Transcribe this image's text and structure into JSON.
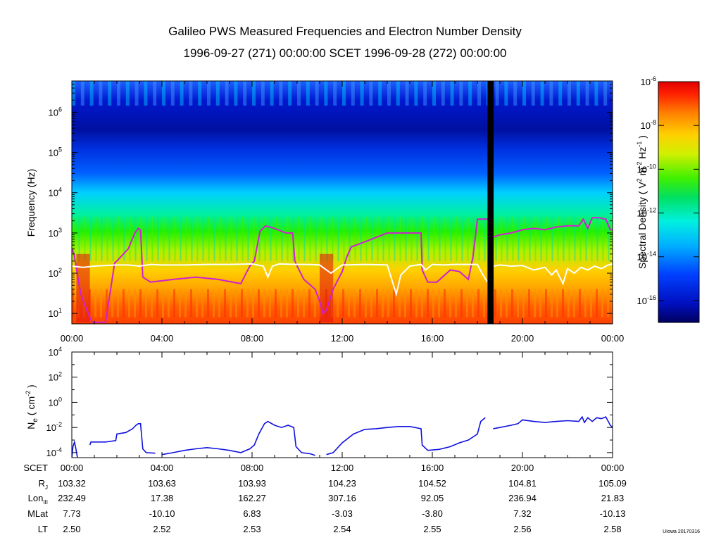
{
  "title_line1": "Galileo PWS Measured Frequencies and Electron Number Density",
  "title_line2": "1996-09-27 (271) 00:00:00 SCET 1996-09-28 (272) 00:00:00",
  "credit": "UIowa 20170316",
  "colors": {
    "density_line": "#1010e0",
    "trace_magenta": "#d020d0",
    "trace_white": "#ffffff",
    "data_gap": "#000000"
  },
  "chart_data": [
    {
      "type": "heatmap",
      "name": "spectrogram",
      "ylabel": "Frequency (Hz)",
      "yscale": "log",
      "ylim": [
        5.5,
        6000000
      ],
      "yticks": [
        {
          "value": 10,
          "base": "10",
          "exp": "1"
        },
        {
          "value": 100,
          "base": "10",
          "exp": "2"
        },
        {
          "value": 1000,
          "base": "10",
          "exp": "3"
        },
        {
          "value": 10000,
          "base": "10",
          "exp": "4"
        },
        {
          "value": 100000,
          "base": "10",
          "exp": "5"
        },
        {
          "value": 1000000,
          "base": "10",
          "exp": "6"
        }
      ],
      "xlim_hours": [
        0,
        24
      ],
      "xticks": [
        "00:00",
        "04:00",
        "08:00",
        "12:00",
        "16:00",
        "20:00",
        "00:00"
      ],
      "data_gap_hours": [
        18.45,
        18.72
      ],
      "colorbar": {
        "label": "Spectral Density ( V",
        "label_sup1": "2",
        "label_mid": " m",
        "label_sup2": "-2",
        "label_mid2": " Hz",
        "label_sup3": "-1",
        "label_end": " )",
        "log_range": [
          -17,
          -6
        ],
        "ticks": [
          {
            "value": -6,
            "base": "10",
            "exp": "-6"
          },
          {
            "value": -8,
            "base": "10",
            "exp": "-8"
          },
          {
            "value": -10,
            "base": "10",
            "exp": "-10"
          },
          {
            "value": -12,
            "base": "10",
            "exp": "-12"
          },
          {
            "value": -14,
            "base": "10",
            "exp": "-14"
          },
          {
            "value": -16,
            "base": "10",
            "exp": "-16"
          }
        ]
      },
      "series": [
        {
          "name": "magenta trace",
          "x": [
            0,
            0.1,
            0.25,
            0.4,
            0.6,
            0.8,
            0.9,
            1.5,
            1.9,
            2.0,
            2.5,
            2.8,
            2.95,
            3.05,
            3.15,
            3.5,
            4.5,
            5.5,
            6.5,
            7.5,
            7.9,
            8.1,
            8.35,
            8.6,
            9.0,
            9.5,
            9.8,
            9.9,
            10.0,
            10.3,
            10.6,
            10.8,
            11.0,
            11.15,
            11.3,
            11.6,
            12.0,
            12.2,
            12.4,
            13.0,
            14.0,
            15.0,
            15.5,
            15.55,
            15.8,
            16.2,
            16.8,
            17.2,
            17.6,
            17.8,
            17.9,
            18.0,
            18.45
          ],
          "y": [
            400,
            300,
            90,
            30,
            15,
            8,
            6,
            6,
            180,
            200,
            400,
            1000,
            1300,
            1200,
            80,
            60,
            70,
            80,
            70,
            55,
            150,
            200,
            1100,
            1500,
            1300,
            1000,
            1000,
            200,
            150,
            70,
            50,
            40,
            20,
            10,
            12,
            40,
            110,
            250,
            450,
            600,
            1000,
            1000,
            1000,
            120,
            60,
            60,
            120,
            110,
            70,
            250,
            700,
            2200,
            2200
          ]
        },
        {
          "name": "magenta trace (after gap)",
          "x": [
            18.72,
            19.0,
            19.5,
            20.0,
            20.5,
            21.0,
            21.5,
            22.0,
            22.5,
            22.7,
            22.9,
            23.1,
            23.4,
            23.7,
            23.9,
            24.0
          ],
          "y": [
            800,
            900,
            1000,
            1200,
            1300,
            1200,
            1400,
            1500,
            1500,
            2200,
            1300,
            2400,
            2400,
            2200,
            1200,
            1200
          ]
        },
        {
          "name": "white trace",
          "x": [
            0,
            0.5,
            1.0,
            1.5,
            2.0,
            2.5,
            3.0,
            3.5,
            4.0,
            5.0,
            6.0,
            7.0,
            8.0,
            8.5,
            8.7,
            8.9,
            9.2,
            10.0,
            10.5,
            11.0,
            11.3,
            11.5,
            12.0,
            13.0,
            14.0,
            14.2,
            14.4,
            14.6,
            15.0,
            15.5,
            15.7,
            16.0,
            16.5,
            17.0,
            17.5,
            18.0,
            18.2,
            18.45
          ],
          "y": [
            150,
            140,
            150,
            155,
            160,
            160,
            150,
            165,
            160,
            160,
            165,
            165,
            170,
            150,
            80,
            150,
            170,
            165,
            165,
            160,
            120,
            100,
            160,
            165,
            160,
            70,
            30,
            90,
            150,
            165,
            120,
            165,
            160,
            165,
            165,
            165,
            100,
            60
          ]
        },
        {
          "name": "white trace (after gap)",
          "x": [
            18.72,
            19.0,
            19.5,
            20.0,
            20.5,
            21.0,
            21.3,
            21.5,
            21.8,
            22.0,
            22.3,
            22.6,
            22.9,
            23.2,
            23.5,
            23.8,
            24.0
          ],
          "y": [
            150,
            160,
            150,
            155,
            120,
            140,
            90,
            120,
            55,
            130,
            100,
            140,
            120,
            150,
            130,
            160,
            170
          ]
        }
      ]
    },
    {
      "type": "line",
      "name": "electron density",
      "ylabel_main": "N",
      "ylabel_sub": "e",
      "ylabel_rest": " ( cm",
      "ylabel_sup": "-2",
      "ylabel_end": " )",
      "yscale": "log",
      "ylim": [
        4e-05,
        10000
      ],
      "yticks": [
        {
          "value": 0.0001,
          "base": "10",
          "exp": "-4"
        },
        {
          "value": 0.01,
          "base": "10",
          "exp": "-2"
        },
        {
          "value": 1,
          "base": "10",
          "exp": "0"
        },
        {
          "value": 100,
          "base": "10",
          "exp": "2"
        },
        {
          "value": 10000,
          "base": "10",
          "exp": "4"
        }
      ],
      "xlim_hours": [
        0,
        24
      ],
      "series": [
        {
          "name": "Ne a",
          "x": [
            0.0,
            0.05,
            0.12,
            0.18,
            0.25
          ],
          "y": [
            4e-05,
            0.0003,
            0.0007,
            0.0002,
            4e-05
          ]
        },
        {
          "name": "Ne b",
          "x": [
            0.8,
            0.85,
            1.5,
            1.95,
            2.0,
            2.4,
            2.7,
            2.85,
            2.95,
            3.05,
            3.15,
            3.3,
            3.7
          ],
          "y": [
            0.0004,
            0.0007,
            0.0007,
            0.0009,
            0.003,
            0.004,
            0.008,
            0.015,
            0.02,
            0.02,
            0.0002,
            0.0001,
            9e-05
          ]
        },
        {
          "name": "Ne c",
          "x": [
            4.0,
            4.5,
            5.0,
            5.5,
            6.0,
            6.5,
            7.0,
            7.5,
            7.9,
            8.1,
            8.3,
            8.55,
            8.7,
            9.0,
            9.3,
            9.6,
            9.85,
            9.95,
            10.2,
            10.6,
            10.8
          ],
          "y": [
            7e-05,
            0.0001,
            0.00015,
            0.0002,
            0.00025,
            0.0002,
            0.00015,
            0.0001,
            0.0002,
            0.0004,
            0.003,
            0.02,
            0.03,
            0.015,
            0.01,
            0.015,
            0.01,
            0.0003,
            0.0001,
            8e-05,
            6e-05
          ]
        },
        {
          "name": "Ne d",
          "x": [
            11.3,
            11.6,
            12.0,
            12.5,
            13.0,
            13.5,
            14.0,
            14.5,
            15.0,
            15.5,
            15.55,
            15.8,
            16.3,
            16.8,
            17.2,
            17.6,
            18.0,
            18.15,
            18.35
          ],
          "y": [
            7e-05,
            0.0001,
            0.0006,
            0.003,
            0.007,
            0.008,
            0.01,
            0.012,
            0.012,
            0.008,
            0.0004,
            0.00015,
            0.00018,
            0.0003,
            0.0006,
            0.001,
            0.003,
            0.03,
            0.06
          ]
        },
        {
          "name": "Ne e",
          "x": [
            18.7,
            19.0,
            19.5,
            19.8,
            20.0,
            20.5,
            21.0,
            21.5,
            22.0,
            22.5,
            22.65,
            22.75,
            22.9,
            23.1,
            23.3,
            23.5,
            23.7,
            23.9,
            24.0
          ],
          "y": [
            0.008,
            0.01,
            0.015,
            0.02,
            0.04,
            0.03,
            0.025,
            0.03,
            0.035,
            0.03,
            0.07,
            0.025,
            0.06,
            0.03,
            0.06,
            0.05,
            0.07,
            0.015,
            0.01
          ]
        }
      ]
    }
  ],
  "ephemeris": {
    "headers": [
      "SCET",
      "R",
      "Lon",
      "MLat",
      "LT"
    ],
    "header_subs": [
      "",
      "J",
      "III",
      "",
      ""
    ],
    "columns": [
      {
        "scet": "00:00",
        "rj": "103.32",
        "lon": "232.49",
        "mlat": "7.73",
        "lt": "2.50"
      },
      {
        "scet": "04:00",
        "rj": "103.63",
        "lon": "17.38",
        "mlat": "-10.10",
        "lt": "2.52"
      },
      {
        "scet": "08:00",
        "rj": "103.93",
        "lon": "162.27",
        "mlat": "6.83",
        "lt": "2.53"
      },
      {
        "scet": "12:00",
        "rj": "104.23",
        "lon": "307.16",
        "mlat": "-3.03",
        "lt": "2.54"
      },
      {
        "scet": "16:00",
        "rj": "104.52",
        "lon": "92.05",
        "mlat": "-3.80",
        "lt": "2.55"
      },
      {
        "scet": "20:00",
        "rj": "104.81",
        "lon": "236.94",
        "mlat": "7.32",
        "lt": "2.56"
      },
      {
        "scet": "00:00",
        "rj": "105.09",
        "lon": "21.83",
        "mlat": "-10.13",
        "lt": "2.58"
      }
    ]
  }
}
